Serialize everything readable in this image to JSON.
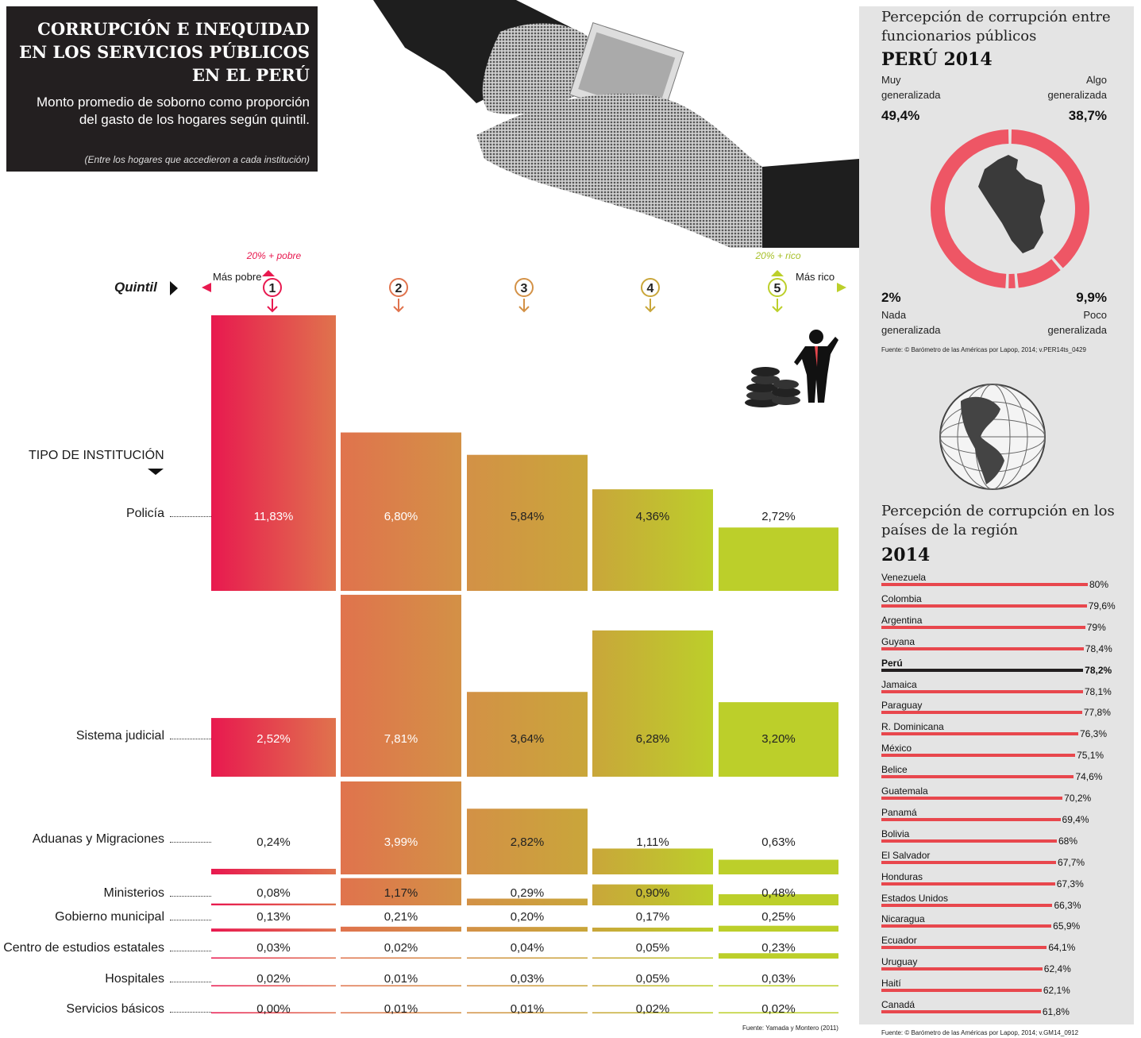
{
  "header": {
    "title": "CORRUPCIÓN E INEQUIDAD EN LOS SERVICIOS PÚBLICOS EN EL PERÚ",
    "subtitle": "Monto promedio de soborno como proporción del gasto de los hogares según quintil.",
    "note": "(Entre los hogares que accedieron a cada institución)"
  },
  "quintil": {
    "label": "Quintil",
    "poor_label": "Más pobre",
    "rich_label": "Más rico",
    "poor_tag": "20% + pobre",
    "rich_tag": "20% + rico",
    "numbers": [
      "1",
      "2",
      "3",
      "4",
      "5"
    ]
  },
  "tipo_label": "TIPO DE INSTITUCIÓN",
  "source_main": "Fuente: Yamada y Montero (2011)",
  "chart_data": {
    "type": "bar",
    "title": "Monto promedio de soborno como proporción del gasto de los hogares según quintil",
    "xlabel": "Quintil",
    "ylabel": "TIPO DE INSTITUCIÓN",
    "categories": [
      "1",
      "2",
      "3",
      "4",
      "5"
    ],
    "series": [
      {
        "name": "Policía",
        "values": [
          11.83,
          6.8,
          5.84,
          4.36,
          2.72
        ],
        "labels": [
          "11,83%",
          "6,80%",
          "5,84%",
          "4,36%",
          "2,72%"
        ]
      },
      {
        "name": "Sistema judicial",
        "values": [
          2.52,
          7.81,
          3.64,
          6.28,
          3.2
        ],
        "labels": [
          "2,52%",
          "7,81%",
          "3,64%",
          "6,28%",
          "3,20%"
        ]
      },
      {
        "name": "Aduanas y Migraciones",
        "values": [
          0.24,
          3.99,
          2.82,
          1.11,
          0.63
        ],
        "labels": [
          "0,24%",
          "3,99%",
          "2,82%",
          "1,11%",
          "0,63%"
        ]
      },
      {
        "name": "Ministerios",
        "values": [
          0.08,
          1.17,
          0.29,
          0.9,
          0.48
        ],
        "labels": [
          "0,08%",
          "1,17%",
          "0,29%",
          "0,90%",
          "0,48%"
        ]
      },
      {
        "name": "Gobierno municipal",
        "values": [
          0.13,
          0.21,
          0.2,
          0.17,
          0.25
        ],
        "labels": [
          "0,13%",
          "0,21%",
          "0,20%",
          "0,17%",
          "0,25%"
        ]
      },
      {
        "name": "Centro de estudios estatales",
        "values": [
          0.03,
          0.02,
          0.04,
          0.05,
          0.23
        ],
        "labels": [
          "0,03%",
          "0,02%",
          "0,04%",
          "0,05%",
          "0,23%"
        ]
      },
      {
        "name": "Hospitales",
        "values": [
          0.02,
          0.01,
          0.03,
          0.05,
          0.03
        ],
        "labels": [
          "0,02%",
          "0,01%",
          "0,03%",
          "0,05%",
          "0,03%"
        ]
      },
      {
        "name": "Servicios básicos",
        "values": [
          0.0,
          0.01,
          0.01,
          0.02,
          0.02
        ],
        "labels": [
          "0,00%",
          "0,01%",
          "0,01%",
          "0,02%",
          "0,02%"
        ]
      }
    ]
  },
  "perception_peru": {
    "title": "Percepción de corrupción entre funcionarios públicos",
    "subtitle": "PERÚ 2014",
    "source": "Fuente: © Barómetro de las Américas por Lapop, 2014; v.PER14ts_0429",
    "chart_data": {
      "type": "pie",
      "categories": [
        "Muy generalizada",
        "Algo generalizada",
        "Poco generalizada",
        "Nada generalizada"
      ],
      "values": [
        49.4,
        38.7,
        9.9,
        2.0
      ],
      "labels": [
        "49,4%",
        "38,7%",
        "9,9%",
        "2%"
      ]
    },
    "legend": {
      "muy_1": "Muy",
      "muy_2": "generalizada",
      "muy_val": "49,4%",
      "algo_1": "Algo",
      "algo_2": "generalizada",
      "algo_val": "38,7%",
      "nada_val": "2%",
      "nada_1": "Nada",
      "nada_2": "generalizada",
      "poco_val": "9,9%",
      "poco_1": "Poco",
      "poco_2": "generalizada"
    },
    "color": "#ee5665"
  },
  "perception_region": {
    "title": "Percepción de corrupción en los países de la región",
    "subtitle": "2014",
    "source": "Fuente: © Barómetro de las Américas por Lapop, 2014; v.GM14_0912",
    "chart_data": {
      "type": "bar",
      "categories": [
        "Venezuela",
        "Colombia",
        "Argentina",
        "Guyana",
        "Perú",
        "Jamaica",
        "Paraguay",
        "R. Dominicana",
        "México",
        "Belice",
        "Guatemala",
        "Panamá",
        "Bolivia",
        "El Salvador",
        "Honduras",
        "Estados Unidos",
        "Nicaragua",
        "Ecuador",
        "Uruguay",
        "Haití",
        "Canadá"
      ],
      "values": [
        80,
        79.6,
        79,
        78.4,
        78.2,
        78.1,
        77.8,
        76.3,
        75.1,
        74.6,
        70.2,
        69.4,
        68,
        67.7,
        67.3,
        66.3,
        65.9,
        64.1,
        62.4,
        62.1,
        61.8
      ],
      "labels": [
        "80%",
        "79,6%",
        "79%",
        "78,4%",
        "78,2%",
        "78,1%",
        "77,8%",
        "76,3%",
        "75,1%",
        "74,6%",
        "70,2%",
        "69,4%",
        "68%",
        "67,7%",
        "67,3%",
        "66,3%",
        "65,9%",
        "64,1%",
        "62,4%",
        "62,1%",
        "61,8%"
      ],
      "highlight": "Perú"
    },
    "bar_color": "#e8474d",
    "highlight_color": "#231f20"
  },
  "colors": [
    "#e8194f",
    "#e0734d",
    "#d39146",
    "#c9a63a",
    "#bccf2a"
  ]
}
